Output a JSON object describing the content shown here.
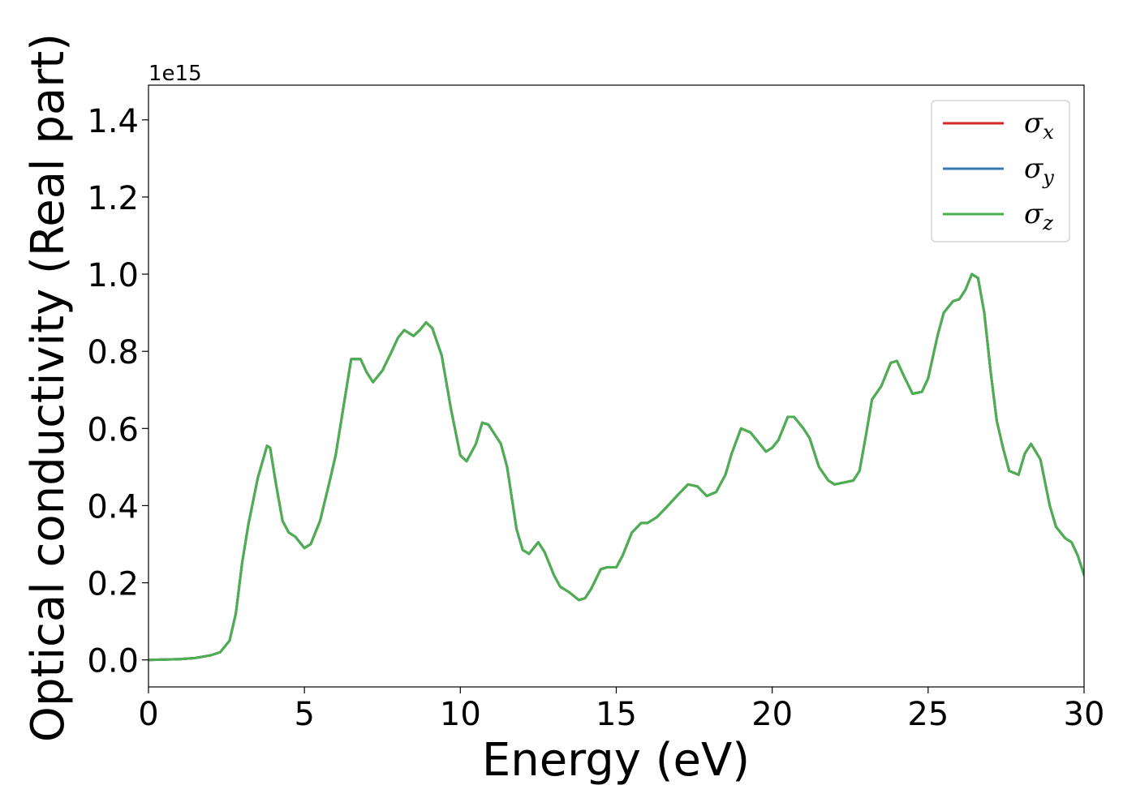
{
  "chart_data": {
    "type": "line",
    "xlabel": "Energy (eV)",
    "ylabel": "Optical conductivity (Real part)",
    "y_offset_label": "1e15",
    "xlim": [
      0,
      30
    ],
    "ylim": [
      -0.07,
      1.49
    ],
    "xticks": [
      0,
      5,
      10,
      15,
      20,
      25,
      30
    ],
    "xtick_labels": [
      "0",
      "5",
      "10",
      "15",
      "20",
      "25",
      "30"
    ],
    "yticks": [
      0.0,
      0.2,
      0.4,
      0.6,
      0.8,
      1.0,
      1.2,
      1.4
    ],
    "ytick_labels": [
      "0.0",
      "0.2",
      "0.4",
      "0.6",
      "0.8",
      "1.0",
      "1.2",
      "1.4"
    ],
    "grid": false,
    "legend_position": "top-right",
    "x": [
      0,
      1,
      1.5,
      2,
      2.3,
      2.6,
      2.8,
      3.0,
      3.2,
      3.5,
      3.8,
      3.9,
      4.1,
      4.3,
      4.5,
      4.7,
      5.0,
      5.2,
      5.5,
      5.8,
      6.0,
      6.3,
      6.5,
      6.8,
      7.0,
      7.2,
      7.5,
      7.8,
      8.0,
      8.2,
      8.5,
      8.7,
      8.9,
      9.1,
      9.4,
      9.7,
      10.0,
      10.2,
      10.5,
      10.7,
      10.9,
      11.1,
      11.3,
      11.5,
      11.8,
      12.0,
      12.2,
      12.5,
      12.7,
      13.0,
      13.2,
      13.5,
      13.8,
      14.0,
      14.2,
      14.5,
      14.7,
      15.0,
      15.2,
      15.5,
      15.8,
      16.0,
      16.3,
      16.6,
      17.0,
      17.3,
      17.6,
      17.9,
      18.2,
      18.5,
      18.7,
      19.0,
      19.3,
      19.5,
      19.8,
      20.0,
      20.2,
      20.5,
      20.7,
      21.0,
      21.2,
      21.5,
      21.8,
      22.0,
      22.3,
      22.6,
      22.8,
      23.0,
      23.2,
      23.5,
      23.8,
      24.0,
      24.2,
      24.5,
      24.8,
      25.0,
      25.3,
      25.5,
      25.8,
      26.0,
      26.2,
      26.4,
      26.6,
      26.8,
      27.0,
      27.2,
      27.4,
      27.6,
      27.9,
      28.1,
      28.3,
      28.6,
      28.9,
      29.1,
      29.4,
      29.6,
      29.8,
      30.0
    ],
    "series": [
      {
        "name": "σx",
        "legend_symbol": "σ",
        "legend_subscript": "x",
        "color": "#d62728",
        "values": [
          0.0,
          0.002,
          0.005,
          0.012,
          0.02,
          0.05,
          0.12,
          0.25,
          0.35,
          0.47,
          0.555,
          0.55,
          0.45,
          0.36,
          0.33,
          0.32,
          0.29,
          0.3,
          0.36,
          0.46,
          0.53,
          0.68,
          0.78,
          0.78,
          0.745,
          0.72,
          0.75,
          0.8,
          0.835,
          0.855,
          0.84,
          0.855,
          0.875,
          0.86,
          0.79,
          0.65,
          0.53,
          0.515,
          0.56,
          0.615,
          0.61,
          0.585,
          0.56,
          0.5,
          0.34,
          0.285,
          0.275,
          0.305,
          0.28,
          0.22,
          0.19,
          0.175,
          0.155,
          0.16,
          0.185,
          0.235,
          0.24,
          0.24,
          0.27,
          0.33,
          0.355,
          0.355,
          0.37,
          0.395,
          0.43,
          0.455,
          0.45,
          0.425,
          0.435,
          0.48,
          0.535,
          0.6,
          0.59,
          0.57,
          0.54,
          0.55,
          0.57,
          0.63,
          0.63,
          0.6,
          0.575,
          0.5,
          0.465,
          0.455,
          0.46,
          0.465,
          0.49,
          0.58,
          0.675,
          0.71,
          0.77,
          0.775,
          0.74,
          0.69,
          0.695,
          0.73,
          0.84,
          0.9,
          0.93,
          0.935,
          0.96,
          1.0,
          0.99,
          0.9,
          0.75,
          0.62,
          0.55,
          0.49,
          0.48,
          0.535,
          0.56,
          0.52,
          0.4,
          0.345,
          0.315,
          0.305,
          0.27,
          0.22
        ]
      },
      {
        "name": "σy",
        "legend_symbol": "σ",
        "legend_subscript": "y",
        "color": "#3a77b0",
        "values": [
          0.0,
          0.002,
          0.005,
          0.012,
          0.02,
          0.05,
          0.12,
          0.25,
          0.35,
          0.47,
          0.555,
          0.55,
          0.45,
          0.36,
          0.33,
          0.32,
          0.29,
          0.3,
          0.36,
          0.46,
          0.53,
          0.68,
          0.78,
          0.78,
          0.745,
          0.72,
          0.75,
          0.8,
          0.835,
          0.855,
          0.84,
          0.855,
          0.875,
          0.86,
          0.79,
          0.65,
          0.53,
          0.515,
          0.56,
          0.615,
          0.61,
          0.585,
          0.56,
          0.5,
          0.34,
          0.285,
          0.275,
          0.305,
          0.28,
          0.22,
          0.19,
          0.175,
          0.155,
          0.16,
          0.185,
          0.235,
          0.24,
          0.24,
          0.27,
          0.33,
          0.355,
          0.355,
          0.37,
          0.395,
          0.43,
          0.455,
          0.45,
          0.425,
          0.435,
          0.48,
          0.535,
          0.6,
          0.59,
          0.57,
          0.54,
          0.55,
          0.57,
          0.63,
          0.63,
          0.6,
          0.575,
          0.5,
          0.465,
          0.455,
          0.46,
          0.465,
          0.49,
          0.58,
          0.675,
          0.71,
          0.77,
          0.775,
          0.74,
          0.69,
          0.695,
          0.73,
          0.84,
          0.9,
          0.93,
          0.935,
          0.96,
          1.0,
          0.99,
          0.9,
          0.75,
          0.62,
          0.55,
          0.49,
          0.48,
          0.535,
          0.56,
          0.52,
          0.4,
          0.345,
          0.315,
          0.305,
          0.27,
          0.22
        ]
      },
      {
        "name": "σz",
        "legend_symbol": "σ",
        "legend_subscript": "z",
        "color": "#4caf50",
        "values": [
          0.0,
          0.002,
          0.005,
          0.012,
          0.02,
          0.05,
          0.12,
          0.25,
          0.35,
          0.47,
          0.555,
          0.55,
          0.45,
          0.36,
          0.33,
          0.32,
          0.29,
          0.3,
          0.36,
          0.46,
          0.53,
          0.68,
          0.78,
          0.78,
          0.745,
          0.72,
          0.75,
          0.8,
          0.835,
          0.855,
          0.84,
          0.855,
          0.875,
          0.86,
          0.79,
          0.65,
          0.53,
          0.515,
          0.56,
          0.615,
          0.61,
          0.585,
          0.56,
          0.5,
          0.34,
          0.285,
          0.275,
          0.305,
          0.28,
          0.22,
          0.19,
          0.175,
          0.155,
          0.16,
          0.185,
          0.235,
          0.24,
          0.24,
          0.27,
          0.33,
          0.355,
          0.355,
          0.37,
          0.395,
          0.43,
          0.455,
          0.45,
          0.425,
          0.435,
          0.48,
          0.535,
          0.6,
          0.59,
          0.57,
          0.54,
          0.55,
          0.57,
          0.63,
          0.63,
          0.6,
          0.575,
          0.5,
          0.465,
          0.455,
          0.46,
          0.465,
          0.49,
          0.58,
          0.675,
          0.71,
          0.77,
          0.775,
          0.74,
          0.69,
          0.695,
          0.73,
          0.84,
          0.9,
          0.93,
          0.935,
          0.96,
          1.0,
          0.99,
          0.9,
          0.75,
          0.62,
          0.55,
          0.49,
          0.48,
          0.535,
          0.56,
          0.52,
          0.4,
          0.345,
          0.315,
          0.305,
          0.27,
          0.22
        ]
      }
    ]
  }
}
